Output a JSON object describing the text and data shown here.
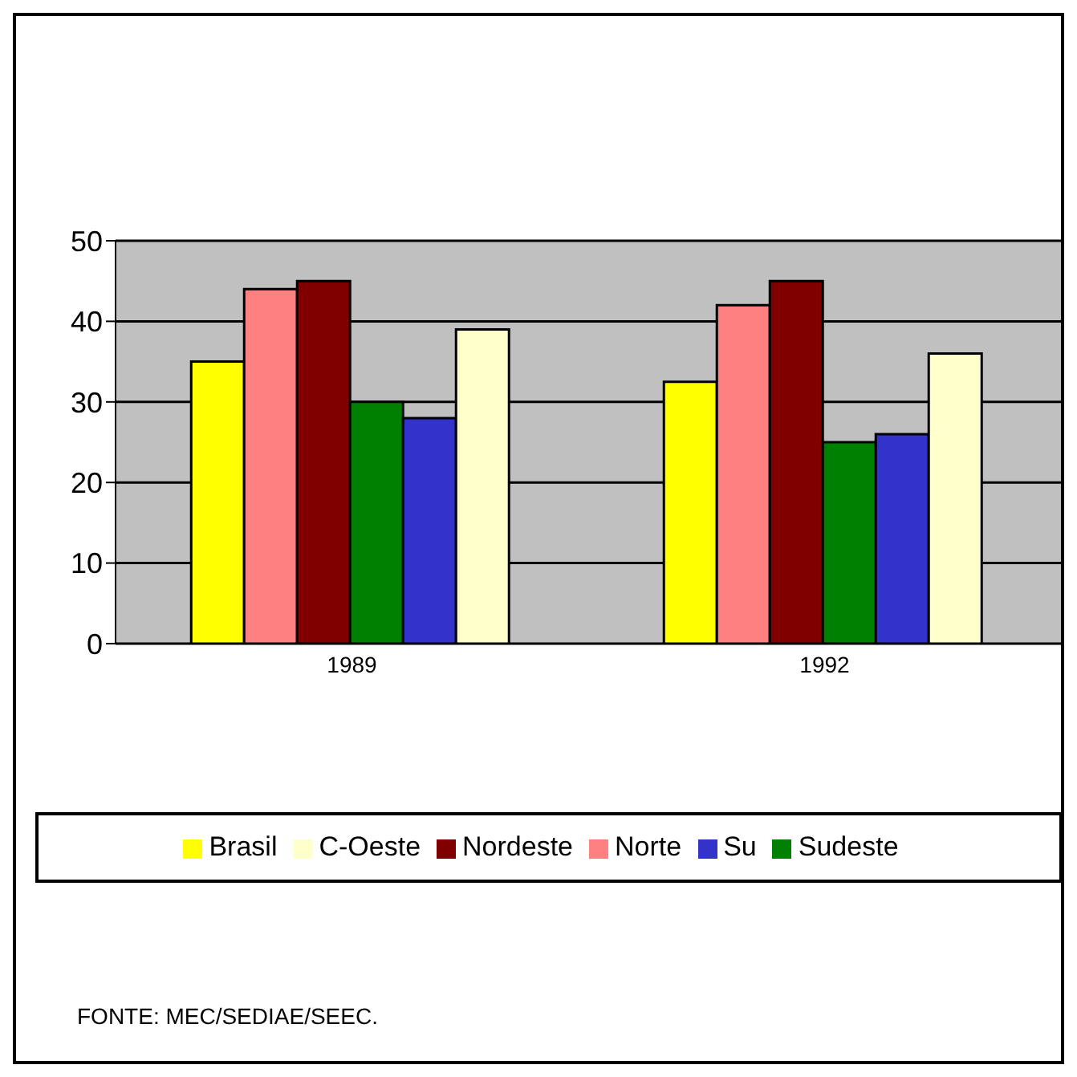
{
  "chart_data": {
    "type": "bar",
    "categories": [
      "1989",
      "1992"
    ],
    "series": [
      {
        "name": "Brasil",
        "color": "#ffff00",
        "values": [
          35,
          32.5
        ]
      },
      {
        "name": "Norte",
        "color": "#ff8080",
        "values": [
          44,
          42
        ]
      },
      {
        "name": "Nordeste",
        "color": "#800000",
        "values": [
          45,
          45
        ]
      },
      {
        "name": "Sudeste",
        "color": "#008000",
        "values": [
          30,
          25
        ]
      },
      {
        "name": "Su",
        "color": "#3333cc",
        "values": [
          28,
          26
        ]
      },
      {
        "name": "C-Oeste",
        "color": "#ffffcc",
        "values": [
          39,
          36
        ]
      }
    ],
    "ylim": [
      0,
      50
    ],
    "yticks": [
      0,
      10,
      20,
      30,
      40,
      50
    ],
    "grid": "y",
    "legend": "bottom",
    "annotations": [
      "FONTE: MEC/SEDIAE/SEEC."
    ]
  }
}
